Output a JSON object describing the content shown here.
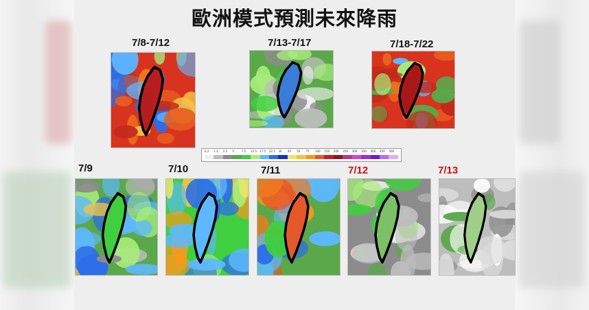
{
  "title": "歐洲模式預測未來降雨",
  "scale_ticks": [
    "0.2",
    "1.2",
    "2.5",
    "5",
    "7.5",
    "12.5",
    "17.5",
    "22.5",
    "30",
    "40",
    "50",
    "75",
    "100",
    "150",
    "200",
    "250",
    "300",
    "350",
    "400",
    "450",
    "500"
  ],
  "scale_colors": [
    "#f0f0f0",
    "#bdbdbd",
    "#8c8c8c",
    "#5aa84a",
    "#3fcf3f",
    "#a7ec7a",
    "#5db8ff",
    "#2d6ee8",
    "#1c2fb8",
    "#e8e86a",
    "#f5c342",
    "#f59a1e",
    "#e5582a",
    "#c62020",
    "#8e1818",
    "#b03a8e",
    "#d248c8",
    "#9b2fd8",
    "#6e1ec4",
    "#b46ef0",
    "#e0aef8"
  ],
  "maps": [
    {
      "label": "7/8-7/12",
      "red": false,
      "scheme": "red",
      "name": "map-7-8-to-7-12"
    },
    {
      "label": "7/13-7/17",
      "red": false,
      "scheme": "green",
      "name": "map-7-13-to-7-17"
    },
    {
      "label": "7/18-7/22",
      "red": false,
      "scheme": "red2",
      "name": "map-7-18-to-7-22"
    },
    {
      "label": "7/9",
      "red": false,
      "scheme": "mix1",
      "name": "map-7-9"
    },
    {
      "label": "7/10",
      "red": false,
      "scheme": "mix2",
      "name": "map-7-10"
    },
    {
      "label": "7/11",
      "red": false,
      "scheme": "mix3",
      "name": "map-7-11"
    },
    {
      "label": "7/12",
      "red": true,
      "scheme": "grey1",
      "name": "map-7-12"
    },
    {
      "label": "7/13",
      "red": true,
      "scheme": "grey2",
      "name": "map-7-13"
    }
  ]
}
